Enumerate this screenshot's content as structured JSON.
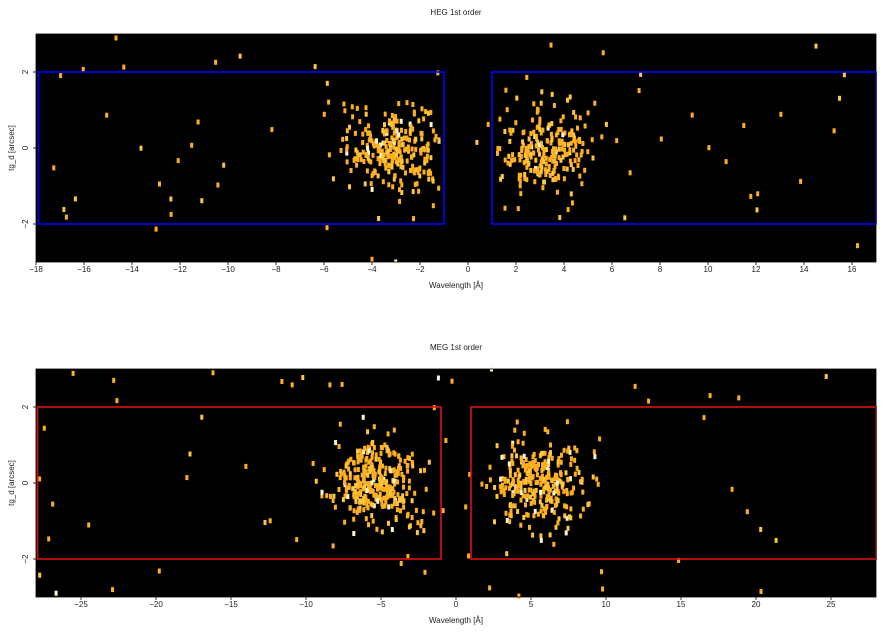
{
  "chart_data": [
    {
      "type": "scatter",
      "title": "HEG 1st order",
      "xlabel": "Wavelength [Å]",
      "ylabel": "tg_d [arcsec]",
      "xlim": [
        -18,
        17
      ],
      "ylim": [
        -3,
        3
      ],
      "xticks": [
        -18,
        -16,
        -14,
        -12,
        -10,
        -8,
        -6,
        -4,
        -2,
        0,
        2,
        4,
        6,
        8,
        10,
        12,
        14,
        16
      ],
      "yticks": [
        -2,
        0,
        2
      ],
      "background": "#000000",
      "marker_color": "#ffb020",
      "box_color": "#0000ff",
      "regions": [
        {
          "x0": -17.9,
          "x1": -1.0,
          "y0": -2.0,
          "y1": 2.0
        },
        {
          "x0": 1.0,
          "x1": 17.0,
          "y0": -2.0,
          "y1": 2.0
        }
      ],
      "clusters": [
        {
          "center": -3.0,
          "spread": 2.0,
          "count": 260
        },
        {
          "center": 3.2,
          "spread": 1.9,
          "count": 230
        }
      ],
      "background_events": 70
    },
    {
      "type": "scatter",
      "title": "MEG 1st order",
      "xlabel": "Wavelength [Å]",
      "ylabel": "tg_d [arcsec]",
      "xlim": [
        -28,
        28
      ],
      "ylim": [
        -3,
        3
      ],
      "xticks": [
        -25,
        -20,
        -15,
        -10,
        -5,
        0,
        5,
        10,
        15,
        20,
        25
      ],
      "yticks": [
        -2,
        0,
        2
      ],
      "background": "#000000",
      "marker_color": "#ffb020",
      "box_color": "#dd1111",
      "regions": [
        {
          "x0": -27.9,
          "x1": -1.0,
          "y0": -2.0,
          "y1": 2.0
        },
        {
          "x0": 1.0,
          "x1": 28.0,
          "y0": -2.0,
          "y1": 2.0
        }
      ],
      "clusters": [
        {
          "center": -5.5,
          "spread": 3.0,
          "count": 330
        },
        {
          "center": 5.5,
          "spread": 3.0,
          "count": 300
        }
      ],
      "background_events": 60
    }
  ]
}
